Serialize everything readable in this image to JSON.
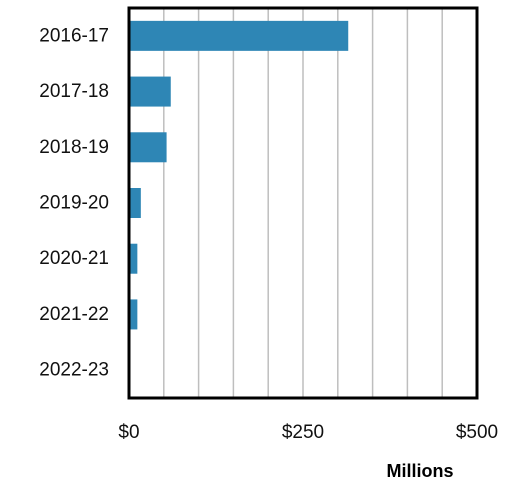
{
  "chart_data": {
    "type": "bar",
    "orientation": "horizontal",
    "categories": [
      "2016-17",
      "2017-18",
      "2018-19",
      "2019-20",
      "2020-21",
      "2021-22",
      "2022-23"
    ],
    "values": [
      315,
      60,
      54,
      17,
      12,
      12,
      0
    ],
    "xlim": [
      0,
      500
    ],
    "x_ticks": [
      0,
      250,
      500
    ],
    "x_tick_labels": [
      "$0",
      "$250",
      "$500"
    ],
    "x_unit_label": "Millions",
    "grid": "vertical",
    "bar_color": "#2E86B5",
    "grid_color": "#BEBEBE"
  }
}
